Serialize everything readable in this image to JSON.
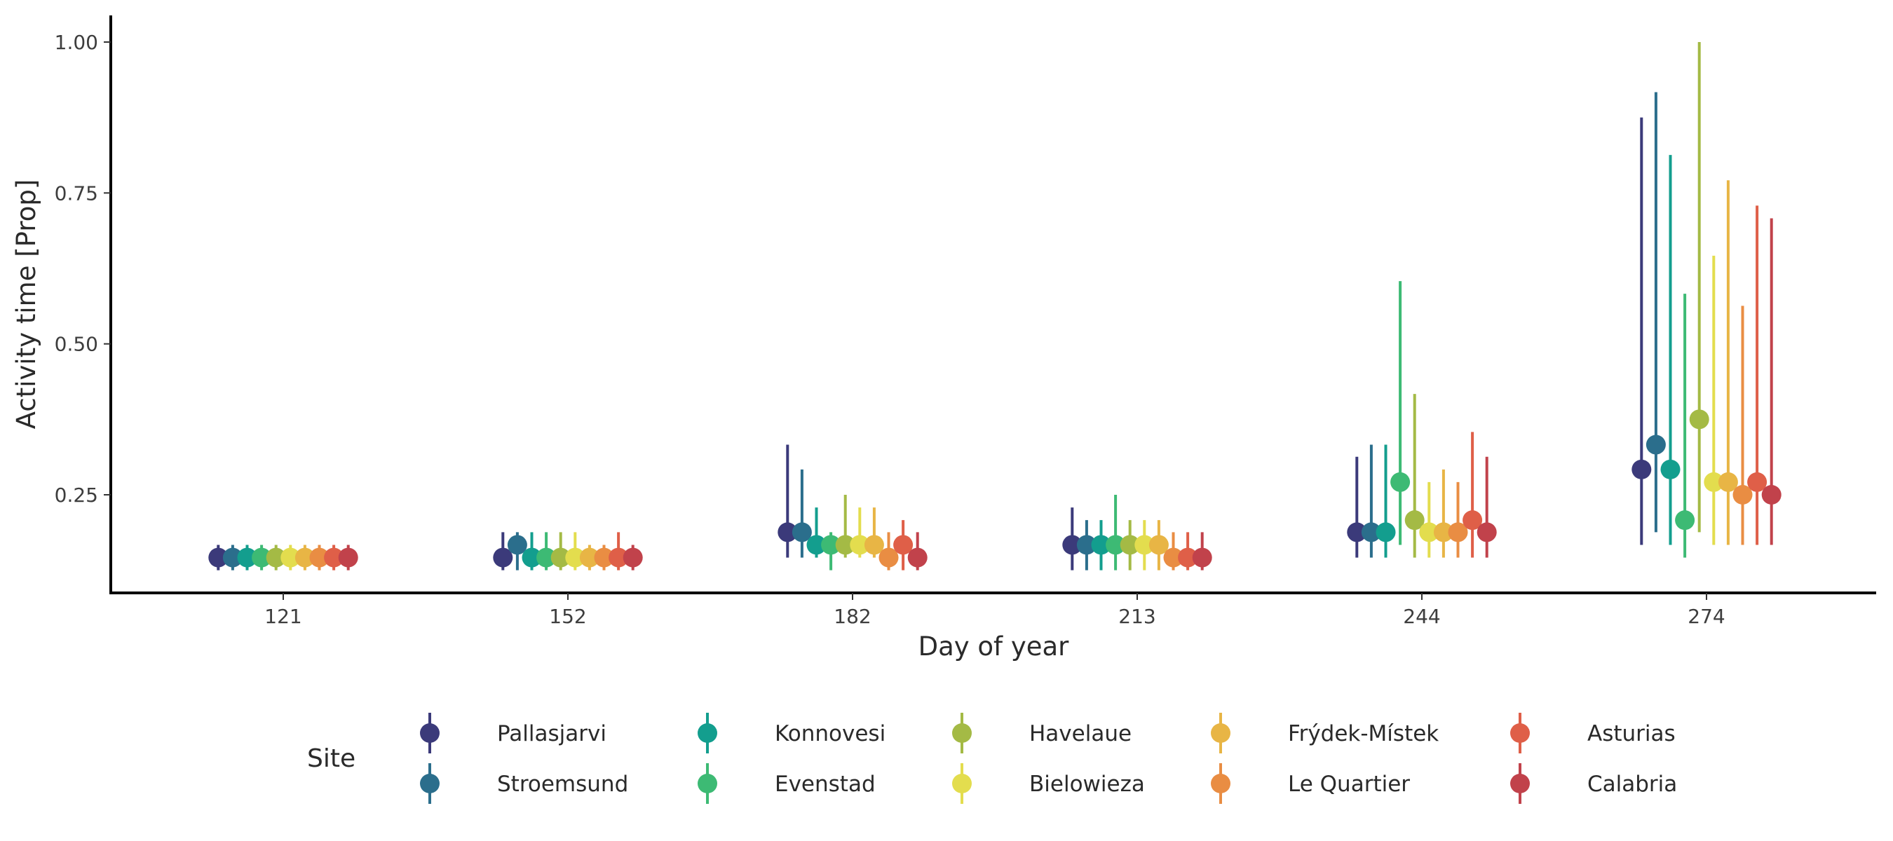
{
  "chart_data": {
    "type": "scatter",
    "subtype": "point-range",
    "title": "",
    "xlabel": "Day of year",
    "ylabel": "Activity time [Prop]",
    "categories": [
      "121",
      "152",
      "182",
      "213",
      "244",
      "274"
    ],
    "ylim": [
      0.08,
      1.04
    ],
    "yticks": [
      0.25,
      0.5,
      0.75,
      1.0
    ],
    "ytick_labels": [
      "0.25",
      "0.50",
      "0.75",
      "1.00"
    ],
    "grid": false,
    "legend": {
      "title": "Site",
      "position": "bottom"
    },
    "series": [
      {
        "name": "Pallasjarvi",
        "color": "#3b3a7a",
        "values": [
          0.146,
          0.146,
          0.188,
          0.167,
          0.188,
          0.292
        ],
        "lower": [
          0.125,
          0.125,
          0.146,
          0.125,
          0.146,
          0.167
        ],
        "upper": [
          0.167,
          0.188,
          0.333,
          0.229,
          0.313,
          0.875
        ]
      },
      {
        "name": "Stroemsund",
        "color": "#2b6e8c",
        "values": [
          0.146,
          0.167,
          0.188,
          0.167,
          0.188,
          0.333
        ],
        "lower": [
          0.125,
          0.125,
          0.146,
          0.125,
          0.146,
          0.188
        ],
        "upper": [
          0.167,
          0.188,
          0.292,
          0.208,
          0.333,
          0.917
        ]
      },
      {
        "name": "Konnovesi",
        "color": "#139e8e",
        "values": [
          0.146,
          0.146,
          0.167,
          0.167,
          0.188,
          0.292
        ],
        "lower": [
          0.125,
          0.125,
          0.146,
          0.125,
          0.146,
          0.167
        ],
        "upper": [
          0.167,
          0.188,
          0.229,
          0.208,
          0.333,
          0.813
        ]
      },
      {
        "name": "Evenstad",
        "color": "#3dba74",
        "values": [
          0.146,
          0.146,
          0.167,
          0.167,
          0.271,
          0.208
        ],
        "lower": [
          0.125,
          0.125,
          0.125,
          0.125,
          0.167,
          0.146
        ],
        "upper": [
          0.167,
          0.188,
          0.188,
          0.25,
          0.604,
          0.583
        ]
      },
      {
        "name": "Havelaue",
        "color": "#a4ba45",
        "values": [
          0.146,
          0.146,
          0.167,
          0.167,
          0.208,
          0.375
        ],
        "lower": [
          0.125,
          0.125,
          0.146,
          0.125,
          0.146,
          0.188
        ],
        "upper": [
          0.167,
          0.188,
          0.25,
          0.208,
          0.417,
          1.0
        ]
      },
      {
        "name": "Bielowieza",
        "color": "#e3dd4e",
        "values": [
          0.146,
          0.146,
          0.167,
          0.167,
          0.188,
          0.271
        ],
        "lower": [
          0.125,
          0.125,
          0.146,
          0.125,
          0.146,
          0.167
        ],
        "upper": [
          0.167,
          0.188,
          0.229,
          0.208,
          0.271,
          0.646
        ]
      },
      {
        "name": "Frýdek-Místek",
        "color": "#e8b545",
        "values": [
          0.146,
          0.146,
          0.167,
          0.167,
          0.188,
          0.271
        ],
        "lower": [
          0.125,
          0.125,
          0.146,
          0.125,
          0.146,
          0.167
        ],
        "upper": [
          0.167,
          0.167,
          0.229,
          0.208,
          0.292,
          0.771
        ]
      },
      {
        "name": "Le Quartier",
        "color": "#e98d43",
        "values": [
          0.146,
          0.146,
          0.146,
          0.146,
          0.188,
          0.25
        ],
        "lower": [
          0.125,
          0.125,
          0.125,
          0.125,
          0.146,
          0.167
        ],
        "upper": [
          0.167,
          0.167,
          0.188,
          0.188,
          0.271,
          0.563
        ]
      },
      {
        "name": "Asturias",
        "color": "#df5f48",
        "values": [
          0.146,
          0.146,
          0.167,
          0.146,
          0.208,
          0.271
        ],
        "lower": [
          0.125,
          0.125,
          0.125,
          0.125,
          0.146,
          0.167
        ],
        "upper": [
          0.167,
          0.188,
          0.208,
          0.188,
          0.354,
          0.729
        ]
      },
      {
        "name": "Calabria",
        "color": "#c1424b",
        "values": [
          0.146,
          0.146,
          0.146,
          0.146,
          0.188,
          0.25
        ],
        "lower": [
          0.125,
          0.125,
          0.125,
          0.125,
          0.146,
          0.167
        ],
        "upper": [
          0.167,
          0.167,
          0.188,
          0.188,
          0.313,
          0.708
        ]
      }
    ]
  }
}
